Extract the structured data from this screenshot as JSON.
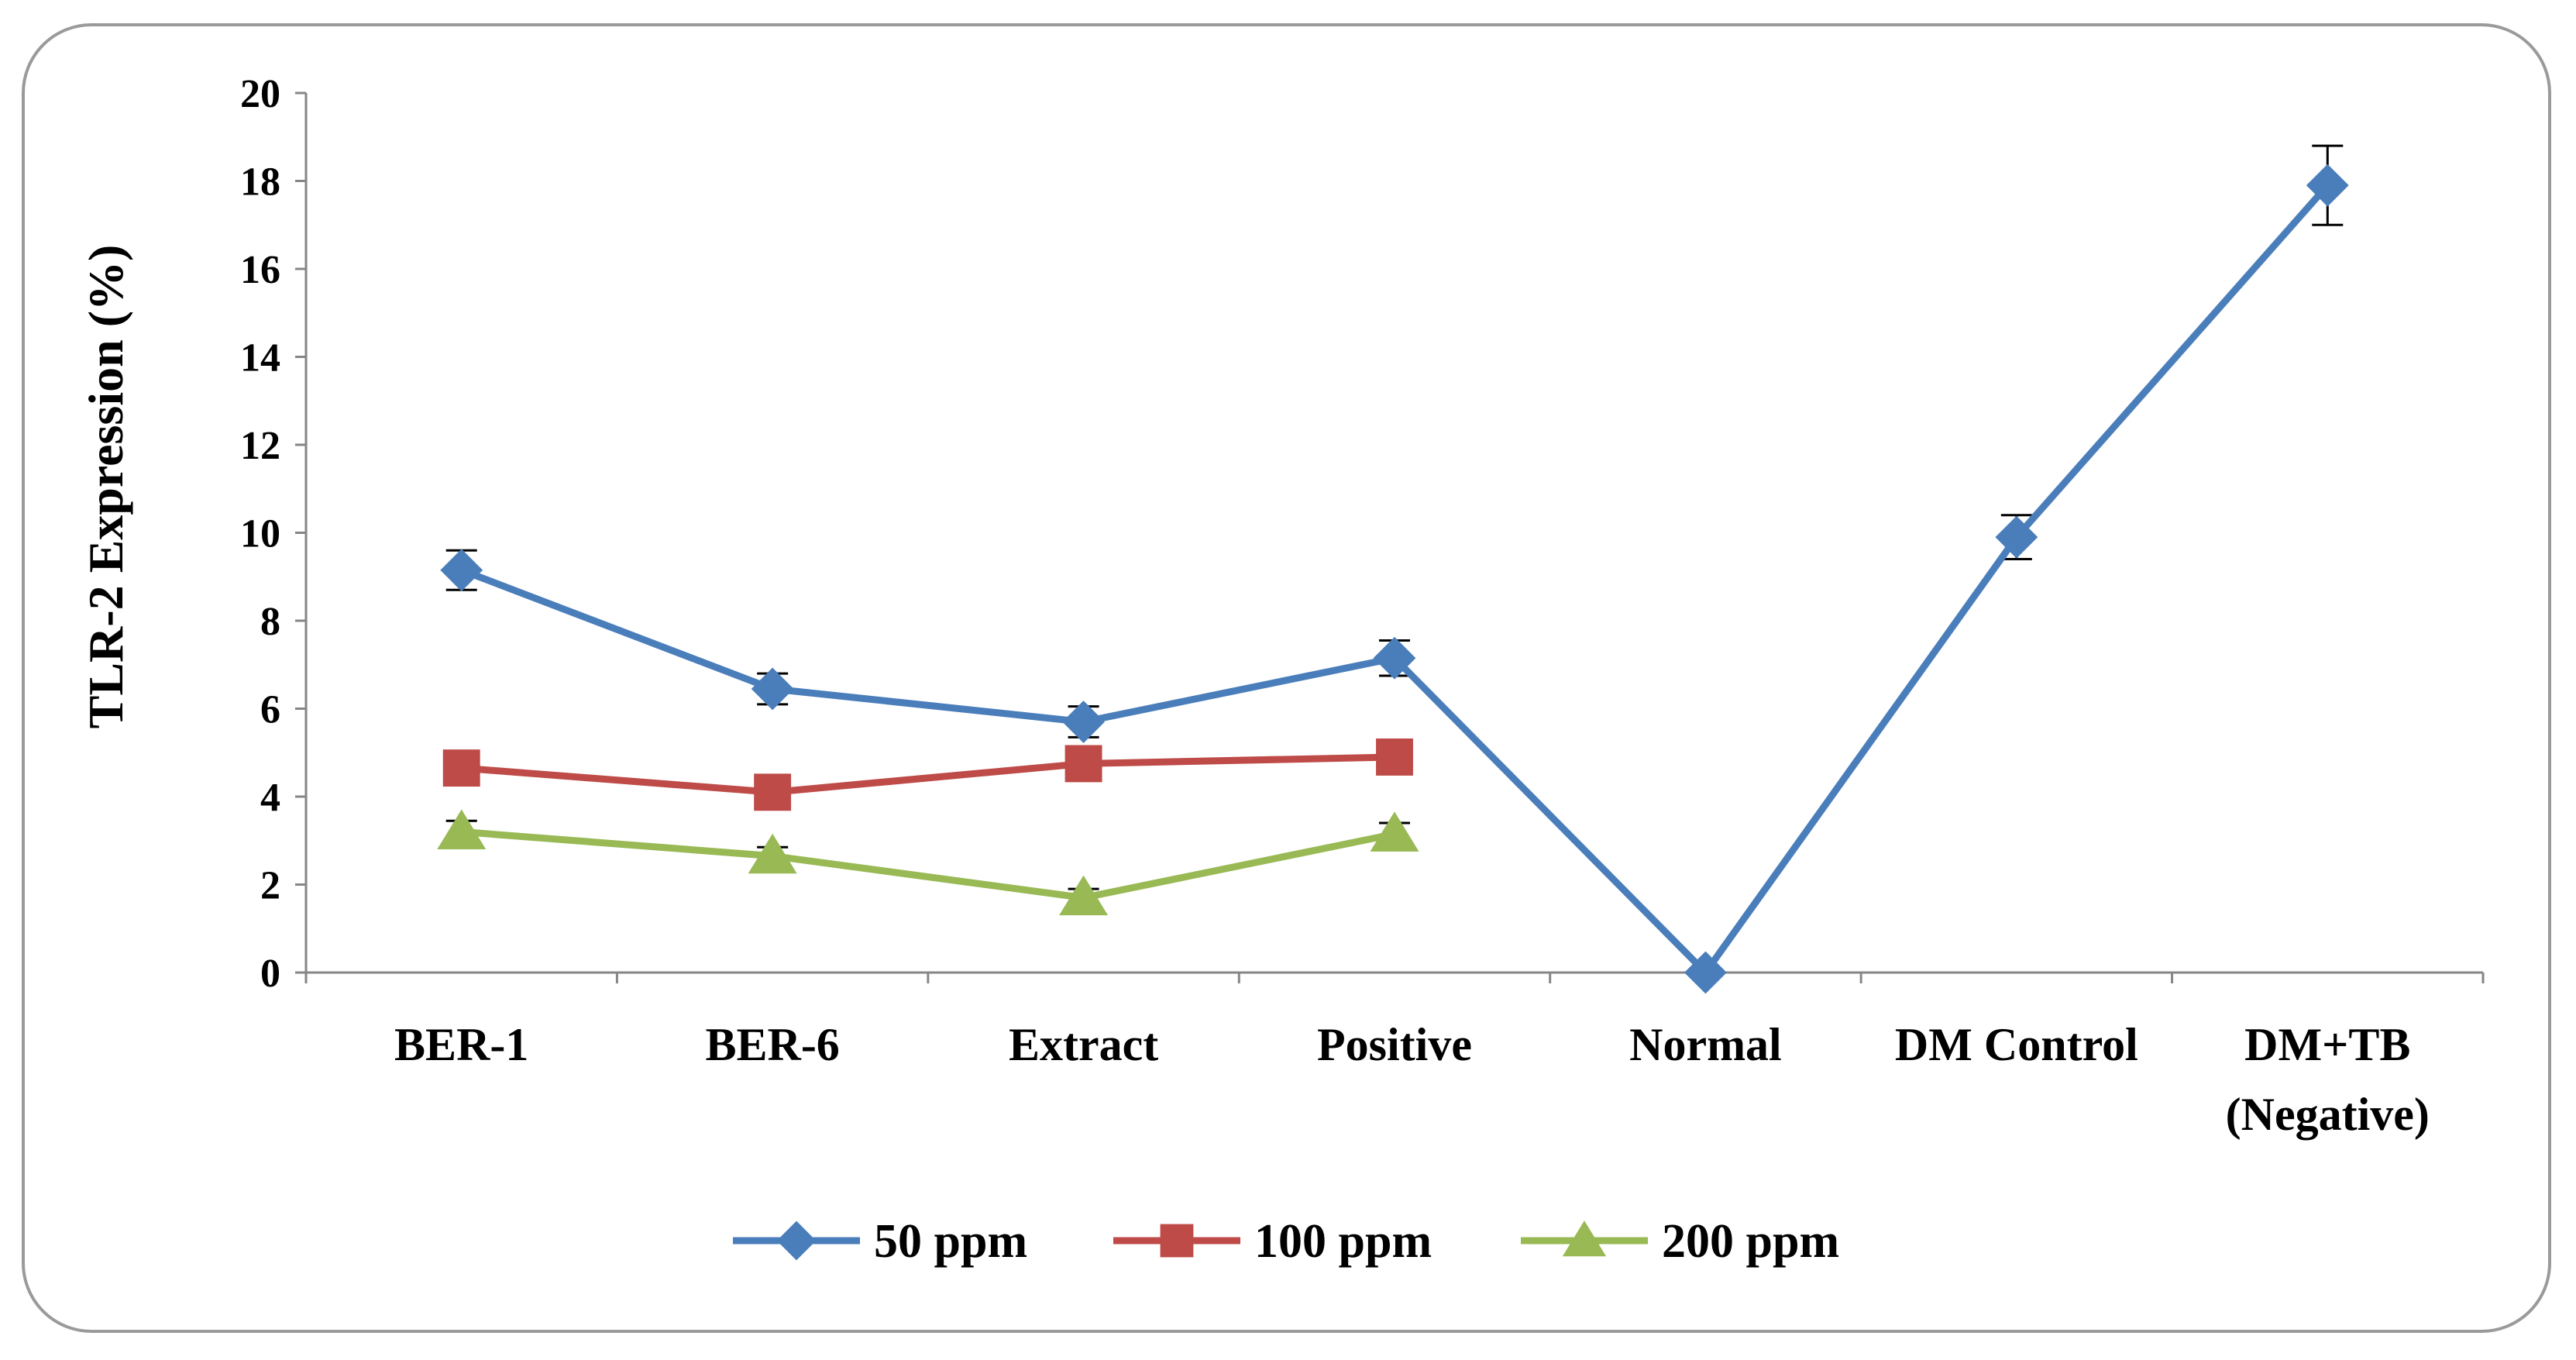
{
  "chart_data": {
    "type": "line",
    "title": "",
    "xlabel": "",
    "ylabel": "TLR-2 Expression (%)",
    "ylim": [
      0,
      20
    ],
    "yticks": [
      0,
      2,
      4,
      6,
      8,
      10,
      12,
      14,
      16,
      18,
      20
    ],
    "categories": [
      "BER-1",
      "BER-6",
      "Extract",
      "Positive",
      "Normal",
      "DM Control",
      "DM+TB (Negative)"
    ],
    "category_lines": [
      [
        "BER-1"
      ],
      [
        "BER-6"
      ],
      [
        "Extract"
      ],
      [
        "Positive"
      ],
      [
        "Normal"
      ],
      [
        "DM Control"
      ],
      [
        "DM+TB",
        "(Negative)"
      ]
    ],
    "series": [
      {
        "name": "50 ppm",
        "color": "#4a7ebb",
        "marker": "diamond",
        "values": [
          9.15,
          6.45,
          5.7,
          7.15,
          0,
          9.9,
          17.9
        ],
        "errors": [
          0.45,
          0.35,
          0.35,
          0.4,
          0,
          0.5,
          0.9
        ]
      },
      {
        "name": "100 ppm",
        "color": "#be4b48",
        "marker": "square",
        "values": [
          4.65,
          4.1,
          4.75,
          4.9,
          null,
          null,
          null
        ],
        "errors": [
          0,
          0,
          0,
          0,
          null,
          null,
          null
        ]
      },
      {
        "name": "200 ppm",
        "color": "#98b954",
        "marker": "triangle",
        "values": [
          3.2,
          2.65,
          1.7,
          3.15,
          null,
          null,
          null
        ],
        "errors": [
          0.25,
          0.2,
          0.2,
          0.25,
          null,
          null,
          null
        ]
      }
    ],
    "legend_position": "bottom",
    "grid": false
  }
}
